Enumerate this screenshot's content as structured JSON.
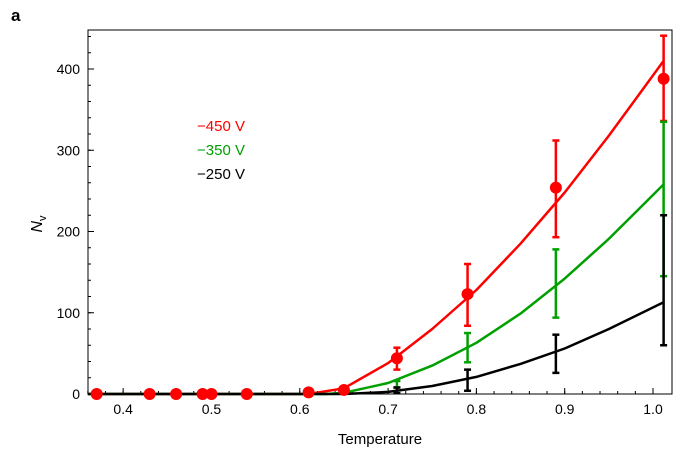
{
  "panel_label": "a",
  "chart_data": {
    "type": "line",
    "title": "",
    "xlabel": "Temperature",
    "ylabel": "N",
    "ylabel_sub": "v",
    "xlim": [
      0.3602,
      1.0215
    ],
    "ylim": [
      0,
      448
    ],
    "xticks": [
      0.4,
      0.5,
      0.6,
      0.7,
      0.8,
      0.9,
      1.0
    ],
    "xtick_labels": [
      "0.4",
      "0.5",
      "0.6",
      "0.7",
      "0.8",
      "0.9",
      "1.0"
    ],
    "yticks": [
      0,
      100,
      200,
      300,
      400
    ],
    "ytick_labels": [
      "0",
      "100",
      "200",
      "300",
      "400"
    ],
    "grid": false,
    "legend_position": "upper-left",
    "series": [
      {
        "name": "−450 V",
        "color": "#ff0000",
        "curve": [
          [
            0.36,
            0
          ],
          [
            0.61,
            0
          ],
          [
            0.65,
            7
          ],
          [
            0.7,
            38
          ],
          [
            0.75,
            80
          ],
          [
            0.8,
            128
          ],
          [
            0.85,
            185
          ],
          [
            0.9,
            248
          ],
          [
            0.95,
            318
          ],
          [
            1.012,
            410
          ]
        ],
        "points": [
          [
            0.37,
            0
          ],
          [
            0.43,
            0
          ],
          [
            0.46,
            0
          ],
          [
            0.49,
            0
          ],
          [
            0.5,
            0
          ],
          [
            0.54,
            0
          ],
          [
            0.61,
            2
          ],
          [
            0.65,
            5
          ],
          [
            0.71,
            44
          ],
          [
            0.79,
            123
          ],
          [
            0.89,
            254
          ],
          [
            1.012,
            388
          ]
        ],
        "errorbars": [
          [
            0.71,
            30,
            57
          ],
          [
            0.79,
            84,
            160
          ],
          [
            0.89,
            193,
            312
          ],
          [
            1.012,
            336,
            441
          ]
        ]
      },
      {
        "name": "−350 V",
        "color": "#00a000",
        "curve": [
          [
            0.36,
            0
          ],
          [
            0.63,
            0
          ],
          [
            0.65,
            1.5
          ],
          [
            0.7,
            13.5
          ],
          [
            0.75,
            35
          ],
          [
            0.8,
            63
          ],
          [
            0.85,
            99
          ],
          [
            0.9,
            142
          ],
          [
            0.95,
            191
          ],
          [
            1.012,
            258
          ]
        ],
        "points": [],
        "errorbars": [
          [
            0.71,
            8,
            16
          ],
          [
            0.79,
            39,
            75
          ],
          [
            0.89,
            94,
            178
          ],
          [
            1.012,
            145,
            335
          ]
        ]
      },
      {
        "name": "−250 V",
        "color": "#000000",
        "curve": [
          [
            0.36,
            0
          ],
          [
            0.65,
            0
          ],
          [
            0.7,
            2.6
          ],
          [
            0.75,
            9.8
          ],
          [
            0.8,
            21
          ],
          [
            0.85,
            37
          ],
          [
            0.9,
            56
          ],
          [
            0.95,
            80
          ],
          [
            1.012,
            113
          ]
        ],
        "points": [],
        "errorbars": [
          [
            0.71,
            1,
            8
          ],
          [
            0.79,
            4,
            30
          ],
          [
            0.89,
            26,
            73
          ],
          [
            1.012,
            60,
            220
          ]
        ]
      }
    ]
  }
}
